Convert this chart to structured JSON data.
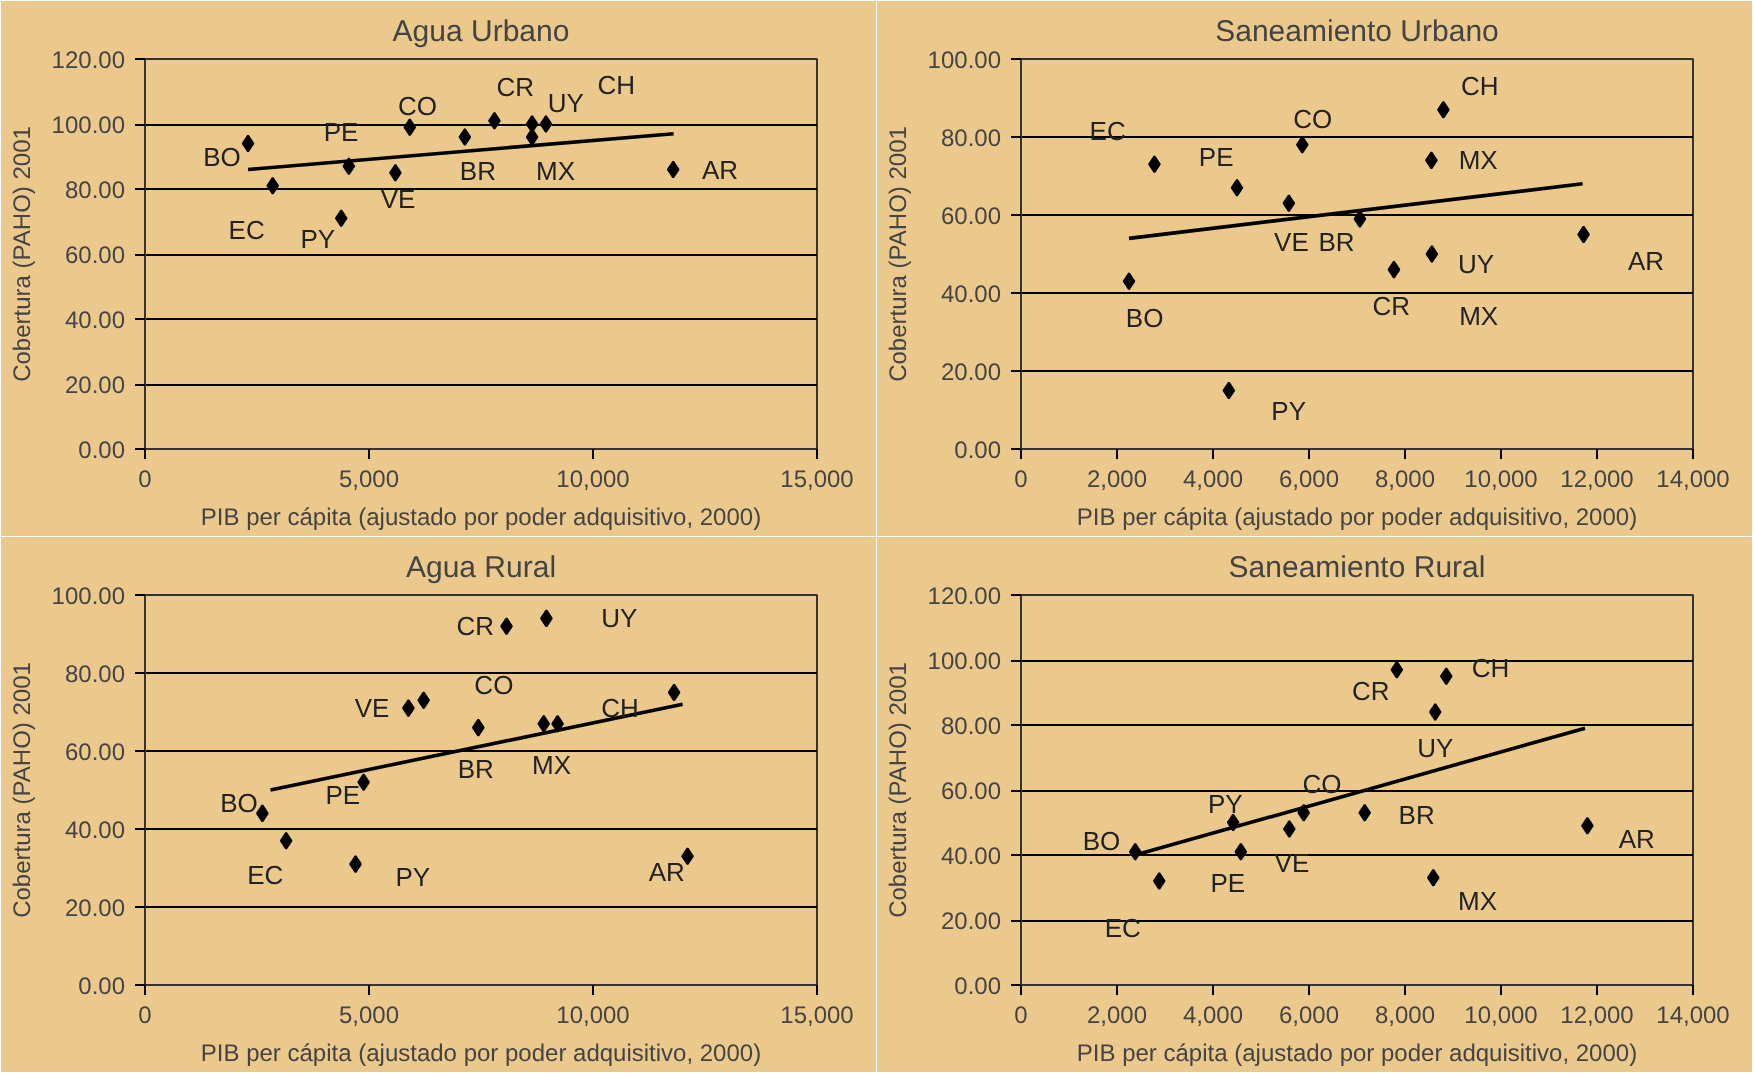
{
  "chart_data": [
    {
      "type": "scatter",
      "title": "Agua Urbano",
      "xlabel": "PIB per cápita (ajustado por poder adquisitivo, 2000)",
      "ylabel": "Cobertura (PAHO) 2001",
      "xlim": [
        0,
        15000
      ],
      "xticks": [
        0,
        {
          "value": 5000,
          "label": "5,000"
        },
        {
          "value": 10000,
          "label": "10,000"
        },
        {
          "value": 15000,
          "label": "15,000"
        }
      ],
      "ylim": [
        0,
        120
      ],
      "yticks": [
        {
          "value": 0,
          "label": "0.00"
        },
        {
          "value": 20,
          "label": "20.00"
        },
        {
          "value": 40,
          "label": "40.00"
        },
        {
          "value": 60,
          "label": "60.00"
        },
        {
          "value": 80,
          "label": "80.00"
        },
        {
          "value": 100,
          "label": "100.00"
        },
        {
          "value": 120,
          "label": "120.00"
        }
      ],
      "grid": "y",
      "marker": "diamond",
      "series": [
        {
          "color": "#000000",
          "x": [
            2300,
            2850,
            4380,
            4550,
            5590,
            5910,
            7140,
            7800,
            8640,
            8640,
            8950,
            11790
          ],
          "values": [
            94,
            81,
            71,
            87,
            85,
            99,
            96,
            101,
            96,
            100,
            100,
            86
          ]
        },
        {
          "type": "line",
          "marker": "none",
          "color": "#000000",
          "x": [
            2300,
            11800
          ],
          "values": [
            86,
            97
          ]
        }
      ],
      "annotations": [
        {
          "text": "BO",
          "x": 2300,
          "y": 94
        },
        {
          "text": "EC",
          "x": 2850,
          "y": 81
        },
        {
          "text": "PY",
          "x": 4380,
          "y": 71
        },
        {
          "text": "PE",
          "x": 4550,
          "y": 87
        },
        {
          "text": "VE",
          "x": 5590,
          "y": 85
        },
        {
          "text": "CO",
          "x": 5910,
          "y": 99
        },
        {
          "text": "BR",
          "x": 7140,
          "y": 96
        },
        {
          "text": "CR",
          "x": 7800,
          "y": 101
        },
        {
          "text": "MX",
          "x": 8640,
          "y": 96
        },
        {
          "text": "UY",
          "x": 8640,
          "y": 100
        },
        {
          "text": "CH",
          "x": 8950,
          "y": 100
        },
        {
          "text": "AR",
          "x": 11790,
          "y": 86
        }
      ]
    },
    {
      "type": "scatter",
      "title": "Saneamiento Urbano",
      "xlabel": "PIB per cápita (ajustado por poder adquisitivo, 2000)",
      "ylabel": "Cobertura (PAHO) 2001",
      "xlim": [
        0,
        14000
      ],
      "xticks": [
        0,
        {
          "value": 2000,
          "label": "2,000"
        },
        {
          "value": 4000,
          "label": "4,000"
        },
        {
          "value": 6000,
          "label": "6,000"
        },
        {
          "value": 8000,
          "label": "8,000"
        },
        {
          "value": 10000,
          "label": "10,000"
        },
        {
          "value": 12000,
          "label": "12,000"
        },
        {
          "value": 14000,
          "label": "14,000"
        }
      ],
      "ylim": [
        0,
        100
      ],
      "yticks": [
        {
          "value": 0,
          "label": "0.00"
        },
        {
          "value": 20,
          "label": "20.00"
        },
        {
          "value": 40,
          "label": "40.00"
        },
        {
          "value": 60,
          "label": "60.00"
        },
        {
          "value": 80,
          "label": "80.00"
        },
        {
          "value": 100,
          "label": "100.00"
        }
      ],
      "grid": "y",
      "marker": "diamond",
      "series": [
        {
          "color": "#000000",
          "x": [
            2250,
            2780,
            4330,
            4500,
            5580,
            5860,
            7060,
            7770,
            8550,
            8560,
            8800,
            11720
          ],
          "values": [
            43,
            73,
            15,
            67,
            63,
            78,
            59,
            46,
            74,
            50,
            87,
            55
          ]
        },
        {
          "type": "line",
          "marker": "none",
          "color": "#000000",
          "x": [
            2250,
            11700
          ],
          "values": [
            54,
            68
          ]
        }
      ],
      "annotations": [
        {
          "text": "EC",
          "x": 2780,
          "y": 73
        },
        {
          "text": "PE",
          "x": 4500,
          "y": 67
        },
        {
          "text": "CO",
          "x": 5860,
          "y": 78
        },
        {
          "text": "CH",
          "x": 8800,
          "y": 87
        },
        {
          "text": "MX",
          "x": 8550,
          "y": 74
        },
        {
          "text": "VE",
          "x": 5580,
          "y": 63
        },
        {
          "text": "BR",
          "x": 7060,
          "y": 59
        },
        {
          "text": "BO",
          "x": 2250,
          "y": 43
        },
        {
          "text": "CR",
          "x": 7770,
          "y": 46
        },
        {
          "text": "UY",
          "x": 8560,
          "y": 50
        },
        {
          "text": "MX",
          "x": 8560,
          "y": 50
        },
        {
          "text": "AR",
          "x": 11720,
          "y": 55
        },
        {
          "text": "PY",
          "x": 4330,
          "y": 15
        }
      ]
    },
    {
      "type": "scatter",
      "title": "Agua Rural",
      "xlabel": "PIB per cápita (ajustado por poder adquisitivo, 2000)",
      "ylabel": "Cobertura (PAHO) 2001",
      "xlim": [
        0,
        15000
      ],
      "xticks": [
        0,
        {
          "value": 5000,
          "label": "5,000"
        },
        {
          "value": 10000,
          "label": "10,000"
        },
        {
          "value": 15000,
          "label": "15,000"
        }
      ],
      "ylim": [
        0,
        100
      ],
      "yticks": [
        {
          "value": 0,
          "label": "0.00"
        },
        {
          "value": 20,
          "label": "20.00"
        },
        {
          "value": 40,
          "label": "40.00"
        },
        {
          "value": 60,
          "label": "60.00"
        },
        {
          "value": 80,
          "label": "80.00"
        },
        {
          "value": 100,
          "label": "100.00"
        }
      ],
      "grid": "y",
      "marker": "diamond",
      "series": [
        {
          "color": "#000000",
          "x": [
            2620,
            3150,
            4700,
            4880,
            5880,
            6220,
            7440,
            8070,
            8960,
            8900,
            9210,
            12110,
            11810
          ],
          "values": [
            44,
            37,
            31,
            52,
            71,
            73,
            66,
            92,
            94,
            67,
            67,
            33,
            75
          ]
        },
        {
          "type": "line",
          "marker": "none",
          "color": "#000000",
          "x": [
            2800,
            12000
          ],
          "values": [
            50,
            72
          ]
        }
      ],
      "annotations": [
        {
          "text": "BO",
          "x": 2620,
          "y": 44
        },
        {
          "text": "EC",
          "x": 3150,
          "y": 37
        },
        {
          "text": "PE",
          "x": 4880,
          "y": 52
        },
        {
          "text": "PY",
          "x": 4700,
          "y": 31
        },
        {
          "text": "VE",
          "x": 5880,
          "y": 71
        },
        {
          "text": "CO",
          "x": 6220,
          "y": 73
        },
        {
          "text": "CR",
          "x": 8070,
          "y": 92
        },
        {
          "text": "UY",
          "x": 8960,
          "y": 94
        },
        {
          "text": "BR",
          "x": 7440,
          "y": 66
        },
        {
          "text": "MX",
          "x": 8900,
          "y": 67
        },
        {
          "text": "CH",
          "x": 9210,
          "y": 67
        },
        {
          "text": "AR",
          "x": 12110,
          "y": 33
        }
      ]
    },
    {
      "type": "scatter",
      "title": "Saneamiento Rural",
      "xlabel": "PIB per cápita (ajustado por poder adquisitivo, 2000)",
      "ylabel": "Cobertura (PAHO) 2001",
      "xlim": [
        0,
        14000
      ],
      "xticks": [
        0,
        {
          "value": 2000,
          "label": "2,000"
        },
        {
          "value": 4000,
          "label": "4,000"
        },
        {
          "value": 6000,
          "label": "6,000"
        },
        {
          "value": 8000,
          "label": "8,000"
        },
        {
          "value": 10000,
          "label": "10,000"
        },
        {
          "value": 12000,
          "label": "12,000"
        },
        {
          "value": 14000,
          "label": "14,000"
        }
      ],
      "ylim": [
        0,
        120
      ],
      "yticks": [
        {
          "value": 0,
          "label": "0.00"
        },
        {
          "value": 20,
          "label": "20.00"
        },
        {
          "value": 40,
          "label": "40.00"
        },
        {
          "value": 60,
          "label": "60.00"
        },
        {
          "value": 80,
          "label": "80.00"
        },
        {
          "value": 100,
          "label": "100.00"
        },
        {
          "value": 120,
          "label": "120.00"
        }
      ],
      "grid": "y",
      "marker": "diamond",
      "series": [
        {
          "color": "#000000",
          "x": [
            2380,
            2880,
            4420,
            4580,
            5590,
            5890,
            7160,
            7830,
            8590,
            8630,
            8860,
            11800
          ],
          "values": [
            41,
            32,
            50,
            41,
            48,
            53,
            53,
            97,
            33,
            84,
            95,
            49
          ]
        },
        {
          "type": "line",
          "marker": "none",
          "color": "#000000",
          "x": [
            2380,
            11750
          ],
          "values": [
            40,
            79
          ]
        }
      ],
      "annotations": [
        {
          "text": "BO",
          "x": 2380,
          "y": 41
        },
        {
          "text": "EC",
          "x": 2880,
          "y": 32
        },
        {
          "text": "PY",
          "x": 4420,
          "y": 50
        },
        {
          "text": "PE",
          "x": 4580,
          "y": 41
        },
        {
          "text": "VE",
          "x": 5590,
          "y": 48
        },
        {
          "text": "CO",
          "x": 5890,
          "y": 53
        },
        {
          "text": "BR",
          "x": 7160,
          "y": 53
        },
        {
          "text": "CR",
          "x": 7830,
          "y": 97
        },
        {
          "text": "CH",
          "x": 8860,
          "y": 95
        },
        {
          "text": "UY",
          "x": 8630,
          "y": 84
        },
        {
          "text": "MX",
          "x": 8590,
          "y": 33
        },
        {
          "text": "AR",
          "x": 11800,
          "y": 49
        }
      ]
    }
  ]
}
